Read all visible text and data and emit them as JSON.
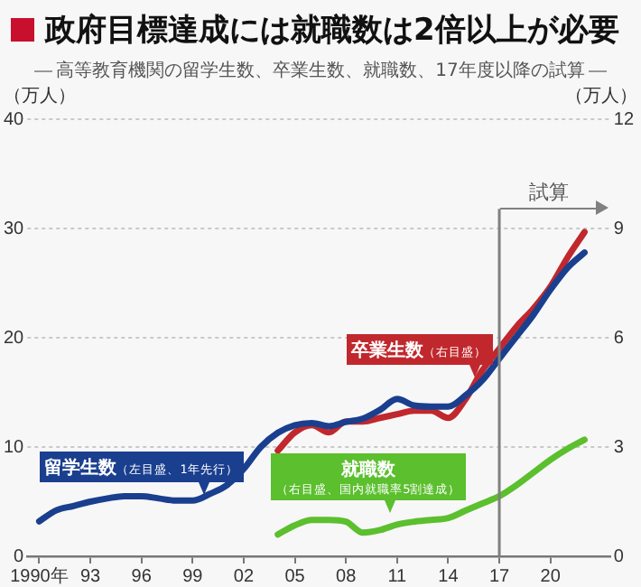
{
  "chart_data": {
    "type": "line",
    "title": "政府目標達成には就職数は2倍以上が必要",
    "subtitle": "高等教育機関の留学生数、卒業生数、就職数、17年度以降の試算",
    "ylabel": "（万人）",
    "y2label": "（万人）",
    "x": [
      1990,
      1991,
      1992,
      1993,
      1994,
      1995,
      1996,
      1997,
      1998,
      1999,
      2000,
      2001,
      2002,
      2003,
      2004,
      2005,
      2006,
      2007,
      2008,
      2009,
      2010,
      2011,
      2012,
      2013,
      2014,
      2015,
      2016,
      2017,
      2018,
      2019,
      2020,
      2021,
      2022
    ],
    "series": [
      {
        "name": "留学生数（左目盛、1年先行）",
        "color": "#1a3f8f",
        "values": [
          3.2,
          4.2,
          4.6,
          5.0,
          5.3,
          5.5,
          5.5,
          5.3,
          5.1,
          5.1,
          5.7,
          6.5,
          8.0,
          10.0,
          11.3,
          12.0,
          12.2,
          11.9,
          12.3,
          12.6,
          13.4,
          14.4,
          13.8,
          13.7,
          13.7,
          14.7,
          16.1,
          18.1,
          20.1,
          22.1,
          24.4,
          26.4,
          27.8
        ]
      },
      {
        "name": "卒業生数（右目盛）",
        "color": "#c0282d",
        "axis": "y2",
        "x": [
          2004,
          2005,
          2006,
          2007,
          2008,
          2009,
          2010,
          2011,
          2012,
          2013,
          2014,
          2015,
          2016,
          2017,
          2018,
          2019,
          2020,
          2021,
          2022
        ],
        "values": [
          2.9,
          3.4,
          3.6,
          3.4,
          3.7,
          3.7,
          3.8,
          3.9,
          4.0,
          4.0,
          3.8,
          4.3,
          5.1,
          5.7,
          6.3,
          6.8,
          7.4,
          8.2,
          8.9
        ]
      },
      {
        "name": "就職数（右目盛、国内就職率5割達成）",
        "color": "#5bbf2e",
        "axis": "y2",
        "x": [
          2004,
          2005,
          2006,
          2007,
          2008,
          2009,
          2010,
          2011,
          2012,
          2013,
          2014,
          2015,
          2016,
          2017,
          2018,
          2019,
          2020,
          2021,
          2022
        ],
        "values": [
          0.6,
          0.85,
          1.0,
          1.0,
          0.95,
          0.65,
          0.72,
          0.87,
          0.95,
          1.0,
          1.05,
          1.25,
          1.45,
          1.65,
          1.95,
          2.3,
          2.65,
          2.95,
          3.2
        ]
      }
    ],
    "xlim": [
      1989.3,
      2023.5
    ],
    "xticks": [
      {
        "value": 1990,
        "label": "1990年"
      },
      {
        "value": 1993,
        "label": "93"
      },
      {
        "value": 1996,
        "label": "96"
      },
      {
        "value": 1999,
        "label": "99"
      },
      {
        "value": 2002,
        "label": "02"
      },
      {
        "value": 2005,
        "label": "05"
      },
      {
        "value": 2008,
        "label": "08"
      },
      {
        "value": 2011,
        "label": "11"
      },
      {
        "value": 2014,
        "label": "14"
      },
      {
        "value": 2017,
        "label": "17"
      },
      {
        "value": 2020,
        "label": "20"
      }
    ],
    "ylim": [
      0,
      40
    ],
    "yticks": [
      0,
      10,
      20,
      30,
      40
    ],
    "y2lim": [
      0,
      12
    ],
    "y2ticks": [
      0,
      3,
      6,
      9,
      12
    ],
    "ref_lines": [
      {
        "axis": "x",
        "value": 2017,
        "label": "試算",
        "color": "#808080"
      }
    ],
    "grid": "y",
    "legend": false,
    "marker": "none",
    "line_style": "solid"
  }
}
